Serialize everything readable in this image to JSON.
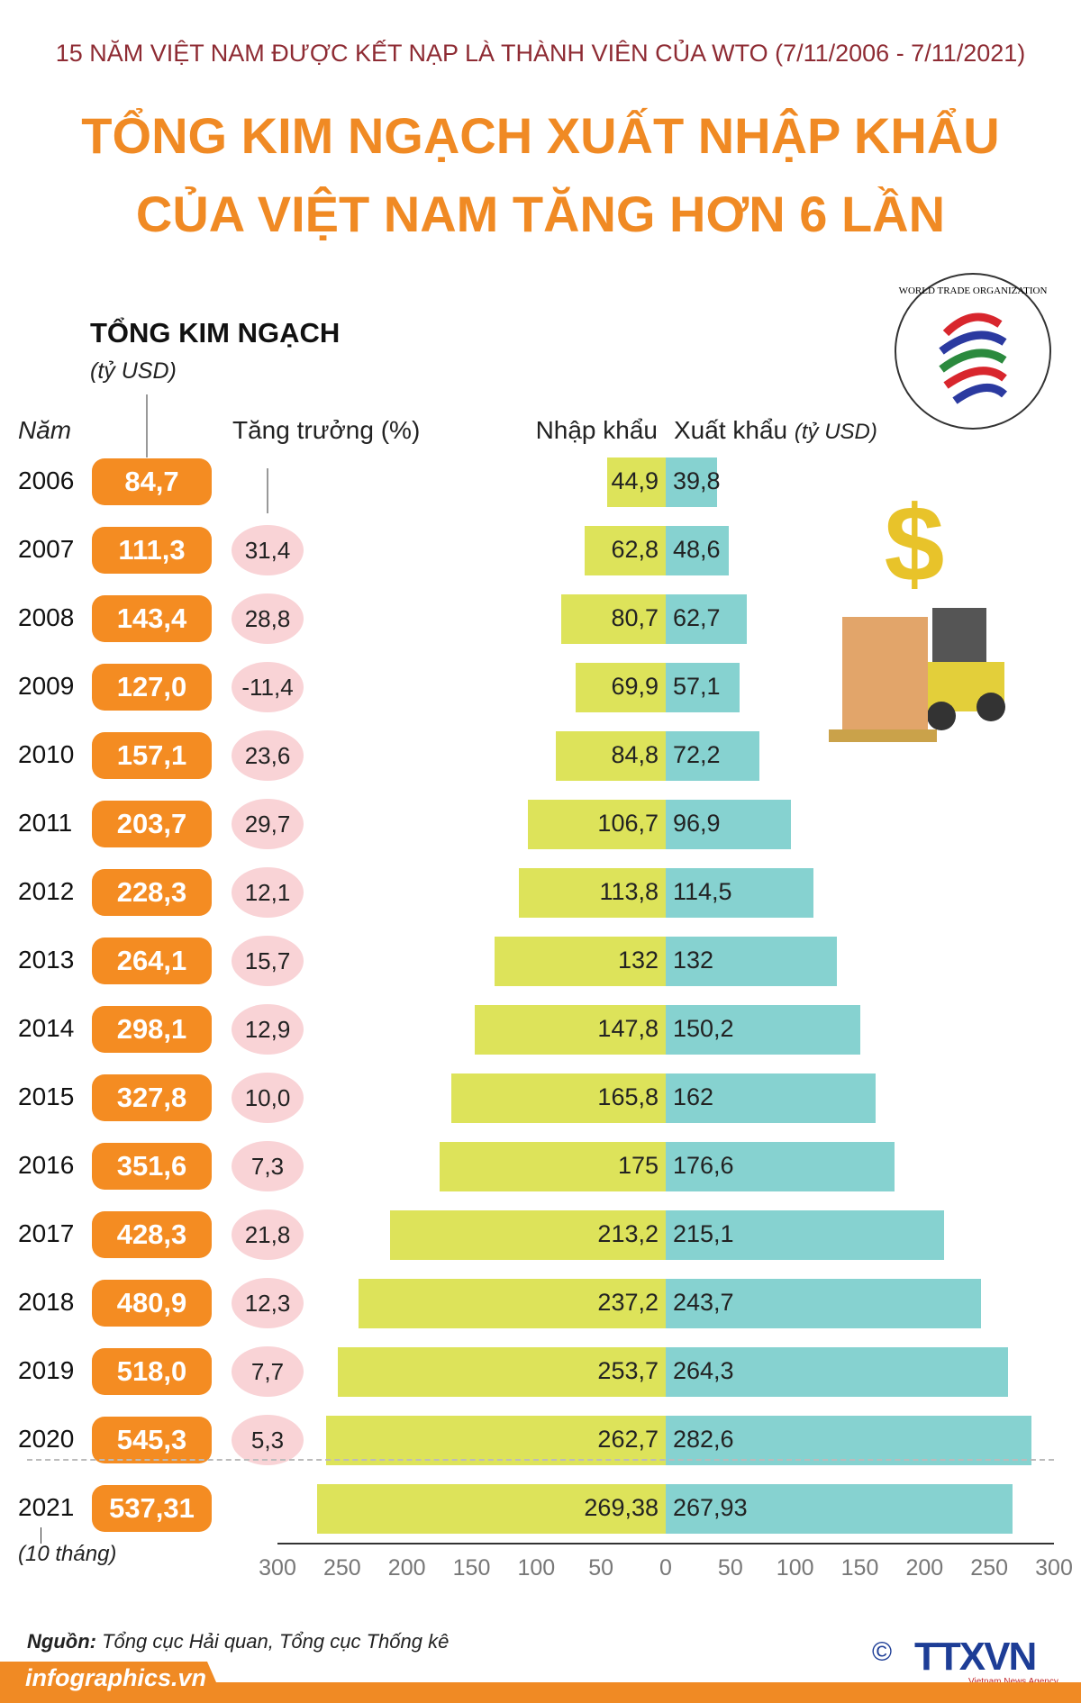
{
  "header": {
    "subtitle": "15 NĂM VIỆT NAM ĐƯỢC KẾT NẠP LÀ THÀNH VIÊN CỦA WTO (7/11/2006 - 7/11/2021)",
    "title_line1": "TỔNG KIM NGẠCH XUẤT NHẬP KHẨU",
    "title_line2": "CỦA VIỆT NAM TĂNG HƠN 6 LẦN"
  },
  "logo_text": "WORLD TRADE ORGANIZATION",
  "colors": {
    "title": "#f08a24",
    "subtitle": "#8e2b33",
    "total_pill": "#f48c22",
    "growth_circle": "#f9d3d6",
    "import_bar": "#dde35a",
    "export_bar": "#86d2d0"
  },
  "chart_data": {
    "type": "bar",
    "orientation": "horizontal-diverging",
    "total_heading": "TỔNG KIM NGẠCH",
    "total_unit": "(tỷ USD)",
    "col_year": "Năm",
    "col_growth": "Tăng trưởng (%)",
    "col_import": "Nhập khẩu",
    "col_export": "Xuất khẩu",
    "col_export_unit": "(tỷ USD)",
    "categories": [
      "2006",
      "2007",
      "2008",
      "2009",
      "2010",
      "2011",
      "2012",
      "2013",
      "2014",
      "2015",
      "2016",
      "2017",
      "2018",
      "2019",
      "2020",
      "2021"
    ],
    "year_note_2021": "(10 tháng)",
    "total": [
      "84,7",
      "111,3",
      "143,4",
      "127,0",
      "157,1",
      "203,7",
      "228,3",
      "264,1",
      "298,1",
      "327,8",
      "351,6",
      "428,3",
      "480,9",
      "518,0",
      "545,3",
      "537,31"
    ],
    "growth": [
      "",
      "31,4",
      "28,8",
      "-11,4",
      "23,6",
      "29,7",
      "12,1",
      "15,7",
      "12,9",
      "10,0",
      "7,3",
      "21,8",
      "12,3",
      "7,7",
      "5,3",
      ""
    ],
    "series": [
      {
        "name": "Nhập khẩu",
        "values": [
          44.9,
          62.8,
          80.7,
          69.9,
          84.8,
          106.7,
          113.8,
          132,
          147.8,
          165.8,
          175,
          213.2,
          237.2,
          253.7,
          262.7,
          269.38
        ],
        "labels": [
          "44,9",
          "62,8",
          "80,7",
          "69,9",
          "84,8",
          "106,7",
          "113,8",
          "132",
          "147,8",
          "165,8",
          "175",
          "213,2",
          "237,2",
          "253,7",
          "262,7",
          "269,38"
        ]
      },
      {
        "name": "Xuất khẩu",
        "values": [
          39.8,
          48.6,
          62.7,
          57.1,
          72.2,
          96.9,
          114.5,
          132,
          150.2,
          162,
          176.6,
          215.1,
          243.7,
          264.3,
          282.6,
          267.93
        ],
        "labels": [
          "39,8",
          "48,6",
          "62,7",
          "57,1",
          "72,2",
          "96,9",
          "114,5",
          "132",
          "150,2",
          "162",
          "176,6",
          "215,1",
          "243,7",
          "264,3",
          "282,6",
          "267,93"
        ]
      }
    ],
    "xlim": [
      -300,
      300
    ],
    "x_ticks": [
      "300",
      "250",
      "200",
      "150",
      "100",
      "50",
      "0",
      "50",
      "100",
      "150",
      "200",
      "250",
      "300"
    ]
  },
  "footer": {
    "source_label": "Nguồn:",
    "source_text": "Tổng cục Hải quan, Tổng cục Thống kê",
    "site": "infographics.vn",
    "agency": "TTXVN",
    "agency_sub": "Vietnam News Agency",
    "copyright": "©"
  }
}
